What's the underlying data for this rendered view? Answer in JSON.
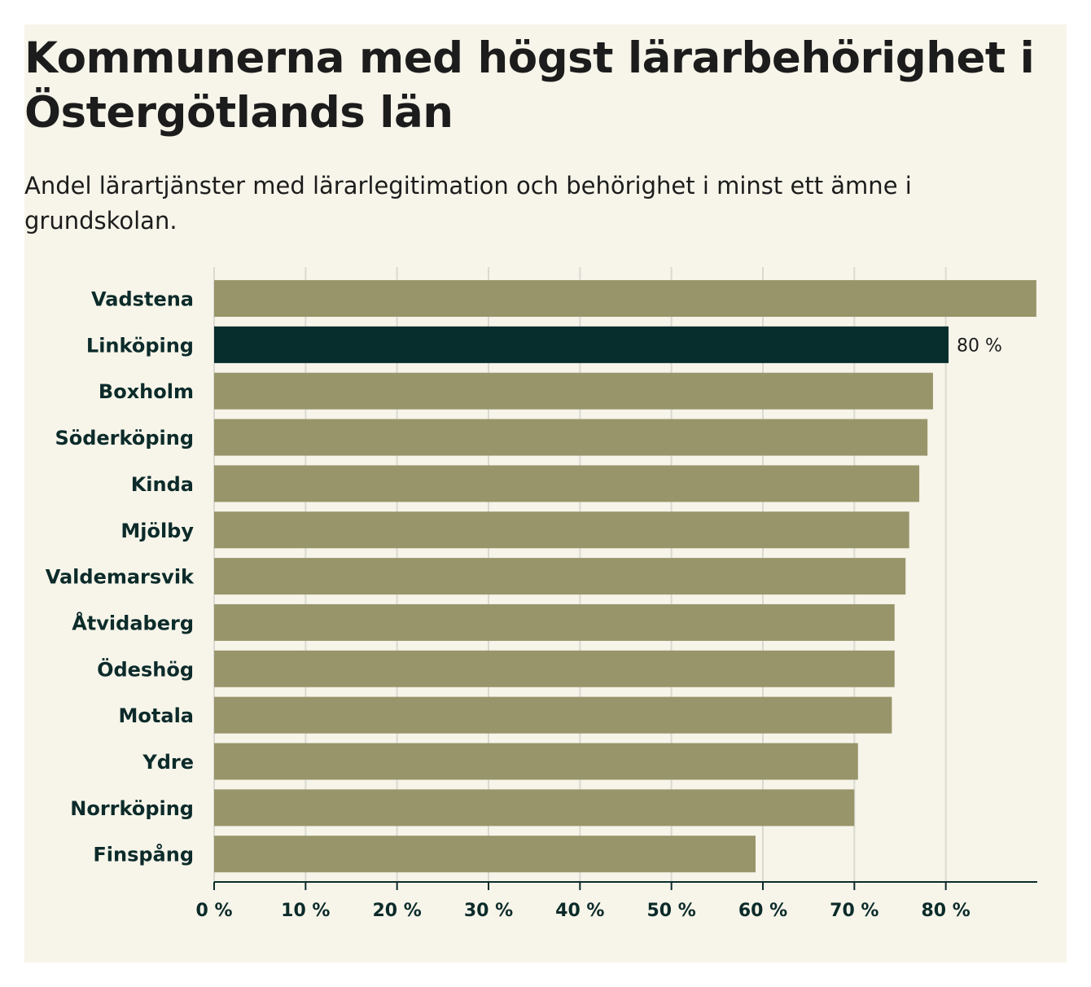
{
  "title": "Kommunerna med högst lärarbehörighet i Östergötlands län",
  "subtitle": "Andel lärartjänster med lärarlegitimation och behörighet i minst ett ämne i grundskolan.",
  "colors": {
    "bar": "#99956b",
    "highlight": "#072d2c",
    "background": "#f7f5ea",
    "grid": "#dadad2",
    "axis": "#0c2b2a"
  },
  "chart_data": {
    "type": "bar",
    "orientation": "horizontal",
    "title": "Kommunerna med högst lärarbehörighet i Östergötlands län",
    "subtitle": "Andel lärartjänster med lärarlegitimation och behörighet i minst ett ämne i grundskolan.",
    "categories": [
      "Vadstena",
      "Linköping",
      "Boxholm",
      "Söderköping",
      "Kinda",
      "Mjölby",
      "Valdemarsvik",
      "Åtvidaberg",
      "Ödeshög",
      "Motala",
      "Ydre",
      "Norrköping",
      "Finspång"
    ],
    "values": [
      89.9,
      80.3,
      78.6,
      78.0,
      77.1,
      76.0,
      75.6,
      74.4,
      74.4,
      74.1,
      70.4,
      70.0,
      59.2
    ],
    "highlight": "Linköping",
    "data_labels": [
      {
        "category": "Linköping",
        "text": "80 %"
      }
    ],
    "xlim": [
      0,
      90
    ],
    "xticks": [
      0,
      10,
      20,
      30,
      40,
      50,
      60,
      70,
      80
    ],
    "xtick_labels": [
      "0 %",
      "10 %",
      "20 %",
      "30 %",
      "40 %",
      "50 %",
      "60 %",
      "70 %",
      "80 %"
    ],
    "xlabel": "",
    "ylabel": "",
    "grid": true,
    "legend": "none"
  }
}
